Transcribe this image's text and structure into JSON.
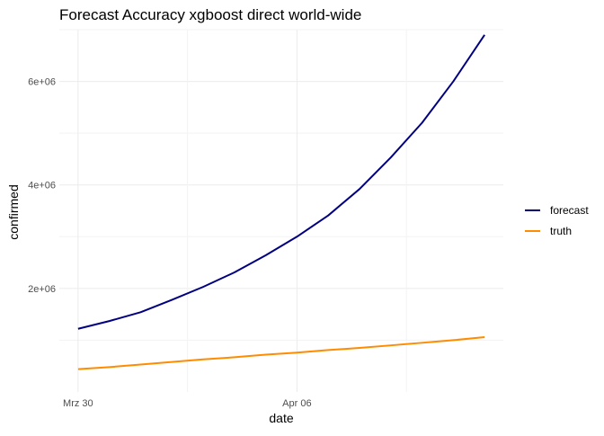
{
  "chart_data": {
    "type": "line",
    "title": "Forecast Accuracy xgboost direct world-wide",
    "xlabel": "date",
    "ylabel": "confirmed",
    "x": [
      "2020-03-30",
      "2020-03-31",
      "2020-04-01",
      "2020-04-02",
      "2020-04-03",
      "2020-04-04",
      "2020-04-05",
      "2020-04-06",
      "2020-04-07",
      "2020-04-08",
      "2020-04-09",
      "2020-04-10",
      "2020-04-11",
      "2020-04-12"
    ],
    "xlim": [
      "2020-03-30",
      "2020-04-12"
    ],
    "x_ticks": [
      {
        "date": "2020-03-30",
        "label": "Mrz 30"
      },
      {
        "date": "2020-04-06",
        "label": "Apr 06"
      }
    ],
    "ylim": [
      0,
      7000000
    ],
    "y_ticks": [
      {
        "value": 2000000,
        "label": "2e+06"
      },
      {
        "value": 4000000,
        "label": "4e+06"
      },
      {
        "value": 6000000,
        "label": "6e+06"
      }
    ],
    "grid": true,
    "legend_position": "right",
    "series": [
      {
        "name": "forecast",
        "color": "#000080",
        "values": [
          1220000,
          1370000,
          1540000,
          1780000,
          2030000,
          2310000,
          2640000,
          3000000,
          3410000,
          3920000,
          4530000,
          5200000,
          6000000,
          6900000
        ]
      },
      {
        "name": "truth",
        "color": "#ff8c00",
        "values": [
          440000,
          480000,
          530000,
          580000,
          630000,
          670000,
          720000,
          760000,
          810000,
          850000,
          900000,
          950000,
          1000000,
          1060000
        ]
      }
    ]
  }
}
